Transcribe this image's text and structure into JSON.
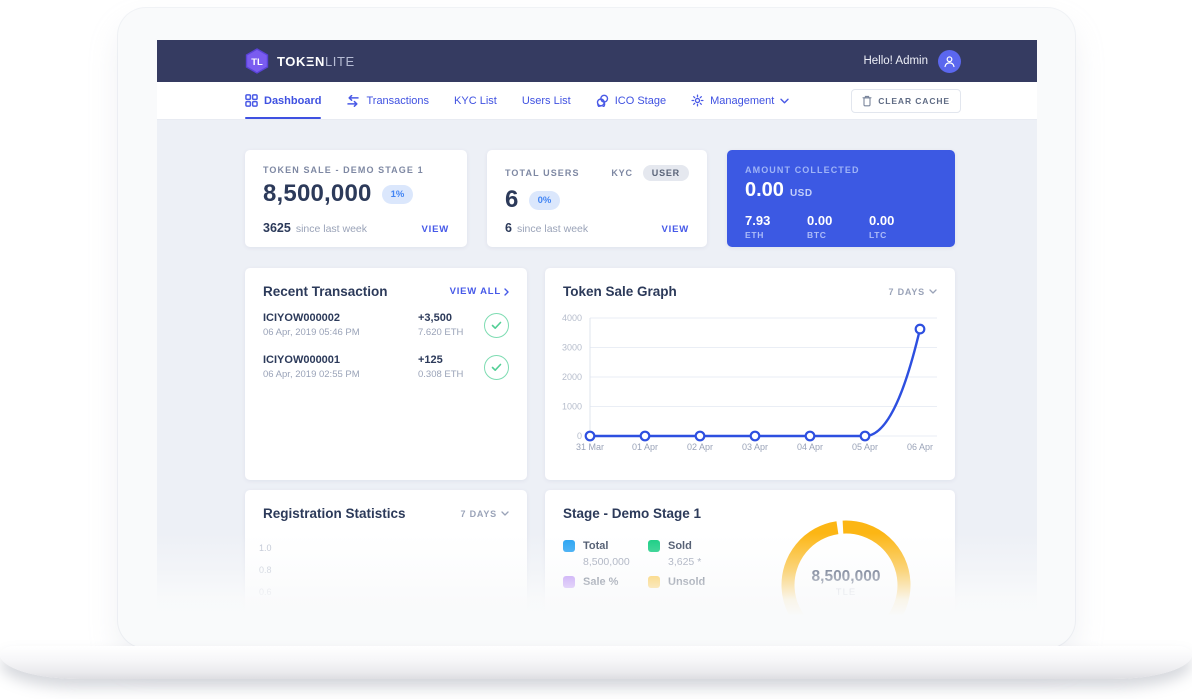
{
  "topbar": {
    "brand_bold": "TOKΞN",
    "brand_light": "LITE",
    "greeting": "Hello! Admin"
  },
  "nav": {
    "items": [
      {
        "label": "Dashboard",
        "active": true
      },
      {
        "label": "Transactions"
      },
      {
        "label": "KYC List"
      },
      {
        "label": "Users List"
      },
      {
        "label": "ICO Stage"
      },
      {
        "label": "Management"
      }
    ],
    "clear_cache_label": "CLEAR CACHE"
  },
  "cards": {
    "token_sale": {
      "title": "TOKEN SALE - DEMO STAGE 1",
      "value": "8,500,000",
      "badge": "1%",
      "delta": "3625",
      "delta_caption": "since last week",
      "view_label": "VIEW"
    },
    "total_users": {
      "title": "TOTAL USERS",
      "tab_kyc": "KYC",
      "tab_user": "USER",
      "value": "6",
      "badge": "0%",
      "delta": "6",
      "delta_caption": "since last week",
      "view_label": "VIEW"
    },
    "amount_collected": {
      "title": "AMOUNT COLLECTED",
      "value": "0.00",
      "currency": "USD",
      "breakdown": [
        {
          "value": "7.93",
          "unit": "ETH"
        },
        {
          "value": "0.00",
          "unit": "BTC"
        },
        {
          "value": "0.00",
          "unit": "LTC"
        }
      ],
      "bg_color": "#3c59e3"
    }
  },
  "transactions": {
    "title": "Recent Transaction",
    "view_all_label": "VIEW ALL",
    "rows": [
      {
        "id": "ICIYOW000002",
        "date": "06 Apr, 2019 05:46 PM",
        "amount": "+3,500",
        "crypto": "7.620 ETH",
        "status": "confirmed"
      },
      {
        "id": "ICIYOW000001",
        "date": "06 Apr, 2019 02:55 PM",
        "amount": "+125",
        "crypto": "0.308 ETH",
        "status": "confirmed"
      }
    ]
  },
  "token_sale_graph": {
    "title": "Token Sale Graph",
    "range_label": "7 DAYS"
  },
  "registration_statistics": {
    "title": "Registration Statistics",
    "range_label": "7 DAYS",
    "visible_yticks": [
      "1.0",
      "0.8",
      "0.6"
    ]
  },
  "stage": {
    "title": "Stage - Demo Stage 1",
    "legend": [
      {
        "label": "Total",
        "value": "8,500,000",
        "color": "#1e9ff2"
      },
      {
        "label": "Sold",
        "value": "3,625 *",
        "color": "#0dcb7d"
      },
      {
        "label": "Sale %",
        "color": "#a56cf5"
      },
      {
        "label": "Unsold",
        "color": "#fdb813"
      }
    ],
    "gauge": {
      "value": "8,500,000",
      "unit": "TLE",
      "color": "#fcb614"
    }
  },
  "chart_data": [
    {
      "type": "line",
      "title": "Token Sale Graph",
      "x": [
        "31 Mar",
        "01 Apr",
        "02 Apr",
        "03 Apr",
        "04 Apr",
        "05 Apr",
        "06 Apr"
      ],
      "values": [
        0,
        0,
        0,
        0,
        0,
        0,
        3625
      ],
      "ylim": [
        0,
        4000
      ],
      "yticks": [
        0,
        1000,
        2000,
        3000,
        4000
      ],
      "xlabel": "",
      "ylabel": "",
      "grid": true,
      "legend_position": "none",
      "line_color": "#2d4fe0",
      "marker": "open-circle"
    },
    {
      "type": "pie",
      "subtype": "donut-gauge",
      "title": "Stage - Demo Stage 1",
      "center_label": "8,500,000 TLE",
      "total": 8500000,
      "slices": [
        {
          "label": "Unsold",
          "value": 8496375,
          "color": "#fcb614"
        },
        {
          "label": "Sold",
          "value": 3625,
          "color": "#0dcb7d"
        }
      ]
    }
  ],
  "colors": {
    "navbar_bg": "#353b61",
    "accent_blue": "#3f51e1",
    "content_bg": "#edf0f6",
    "amount_card_bg": "#3c59e3",
    "gauge_amber": "#fcb614",
    "success_green": "#53cf96"
  }
}
